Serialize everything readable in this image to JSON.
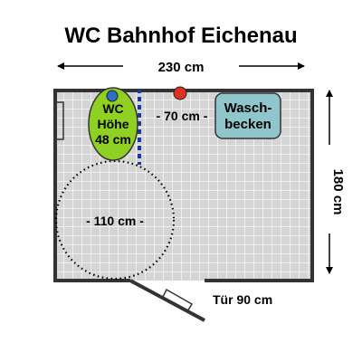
{
  "title": "WC Bahnhof Eichenau",
  "dimensions": {
    "width_label": "230 cm",
    "height_label": "180 cm",
    "toilet_clearance_label": "- 70 cm -",
    "turning_circle_label": "- 110 cm -",
    "door_label": "Tür 90 cm"
  },
  "fixtures": {
    "toilet_label_lines": [
      "WC",
      "Höhe",
      "48 cm"
    ],
    "sink_label_lines": [
      "Wasch-",
      "becken"
    ]
  },
  "colors": {
    "toilet_fill": "#8fd022",
    "sink_fill": "#8fc6cc",
    "floor_fill": "#d4d4d4",
    "grid_line": "#ffffff",
    "wall": "#333333",
    "red_marker": "#e03020",
    "blue_marker": "#2c6fc6"
  },
  "icons": {
    "red_marker": "emergency-button-icon",
    "blue_marker": "flush-button-icon"
  }
}
